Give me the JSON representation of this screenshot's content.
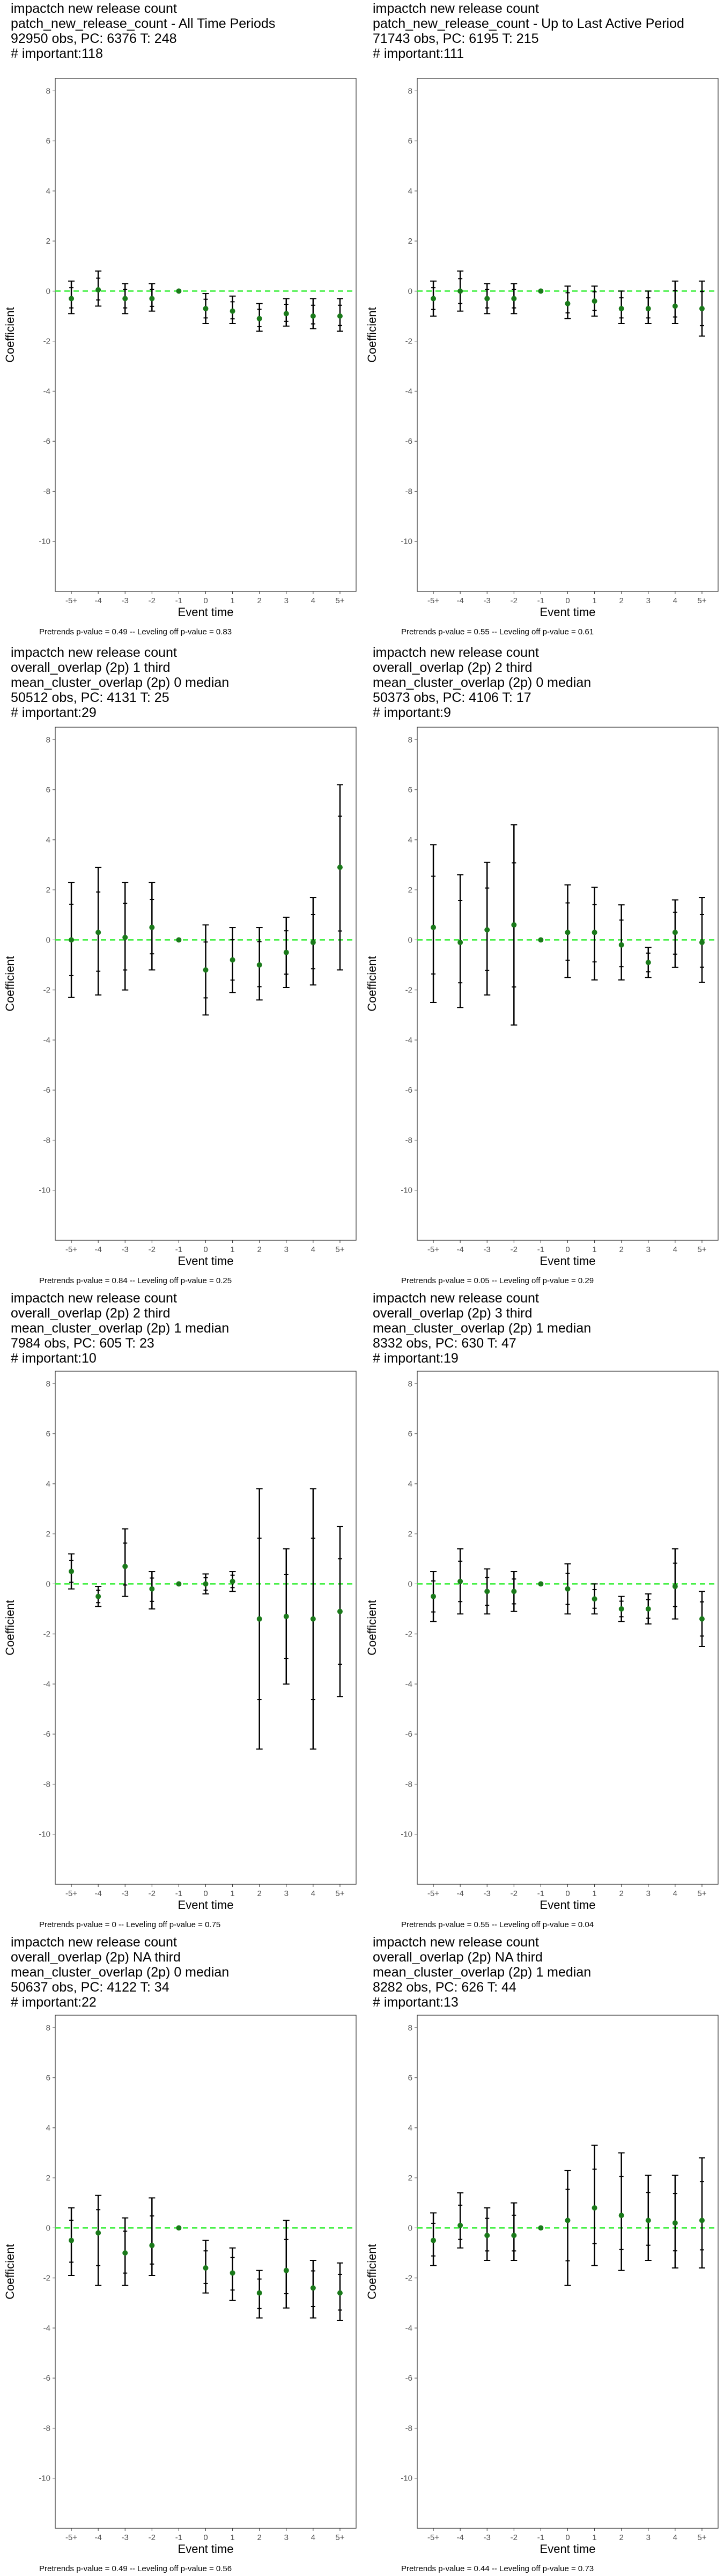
{
  "chart_data": [
    {
      "type": "scatter",
      "title_lines": [
        "impactch new release count",
        "patch_new_release_count - All Time Periods",
        "92950 obs, PC: 6376 T: 248",
        "# important:118"
      ],
      "xlabel": "Event time",
      "ylabel": "Coefficient",
      "categories": [
        "-5+",
        "-4",
        "-3",
        "-2",
        "-1",
        "0",
        "1",
        "2",
        "3",
        "4",
        "5+"
      ],
      "ylim": [
        -12,
        8.5
      ],
      "yticks": [
        -10,
        -8,
        -6,
        -4,
        -2,
        0,
        2,
        4,
        6,
        8
      ],
      "grid": false,
      "reference_line": 0,
      "coef": [
        -0.3,
        0.05,
        -0.3,
        -0.3,
        0,
        -0.7,
        -0.8,
        -1.1,
        -0.9,
        -1.0,
        -1.0
      ],
      "ci_low": [
        -0.9,
        -0.6,
        -0.9,
        -0.8,
        0,
        -1.3,
        -1.3,
        -1.6,
        -1.4,
        -1.5,
        -1.6
      ],
      "ci_high": [
        0.4,
        0.8,
        0.3,
        0.3,
        0,
        -0.1,
        -0.2,
        -0.5,
        -0.3,
        -0.3,
        -0.3
      ],
      "caption_bold": "Pretrends p-value = 0.49 -- Leveling off p-value = 0.83"
    },
    {
      "type": "scatter",
      "title_lines": [
        "impactch new release count",
        "patch_new_release_count - Up to Last Active Period",
        "71743 obs, PC: 6195 T: 215",
        "# important:111"
      ],
      "xlabel": "Event time",
      "ylabel": "Coefficient",
      "categories": [
        "-5+",
        "-4",
        "-3",
        "-2",
        "-1",
        "0",
        "1",
        "2",
        "3",
        "4",
        "5+"
      ],
      "ylim": [
        -12,
        8.5
      ],
      "yticks": [
        -10,
        -8,
        -6,
        -4,
        -2,
        0,
        2,
        4,
        6,
        8
      ],
      "grid": false,
      "reference_line": 0,
      "coef": [
        -0.3,
        0.0,
        -0.3,
        -0.3,
        0,
        -0.5,
        -0.4,
        -0.7,
        -0.7,
        -0.6,
        -0.7
      ],
      "ci_low": [
        -1.0,
        -0.8,
        -0.9,
        -0.9,
        0,
        -1.1,
        -1.0,
        -1.3,
        -1.3,
        -1.3,
        -1.8
      ],
      "ci_high": [
        0.4,
        0.8,
        0.3,
        0.3,
        0,
        0.2,
        0.2,
        0.0,
        0.0,
        0.4,
        0.4
      ],
      "caption_bold": "Pretrends p-value = 0.55 -- Leveling off p-value = 0.61"
    },
    {
      "type": "scatter",
      "title_lines": [
        "impactch new release count",
        "overall_overlap (2p) 1 third",
        "mean_cluster_overlap (2p) 0 median",
        "50512 obs, PC: 4131 T: 25",
        "# important:29"
      ],
      "xlabel": "Event time",
      "ylabel": "Coefficient",
      "categories": [
        "-5+",
        "-4",
        "-3",
        "-2",
        "-1",
        "0",
        "1",
        "2",
        "3",
        "4",
        "5+"
      ],
      "ylim": [
        -12,
        8.5
      ],
      "yticks": [
        -10,
        -8,
        -6,
        -4,
        -2,
        0,
        2,
        4,
        6,
        8
      ],
      "grid": false,
      "reference_line": 0,
      "coef": [
        0.0,
        0.3,
        0.1,
        0.5,
        0,
        -1.2,
        -0.8,
        -1.0,
        -0.5,
        -0.1,
        2.9
      ],
      "ci_low": [
        -2.3,
        -2.2,
        -2.0,
        -1.2,
        0,
        -3.0,
        -2.1,
        -2.4,
        -1.9,
        -1.8,
        -1.2
      ],
      "ci_high": [
        2.3,
        2.9,
        2.3,
        2.3,
        0,
        0.6,
        0.5,
        0.5,
        0.9,
        1.7,
        6.2
      ],
      "caption_bold": "Pretrends p-value = 0.84 -- Leveling off p-value = 0.25"
    },
    {
      "type": "scatter",
      "title_lines": [
        "impactch new release count",
        "overall_overlap (2p) 2 third",
        "mean_cluster_overlap (2p) 0 median",
        "50373 obs, PC: 4106 T: 17",
        "# important:9"
      ],
      "xlabel": "Event time",
      "ylabel": "Coefficient",
      "categories": [
        "-5+",
        "-4",
        "-3",
        "-2",
        "-1",
        "0",
        "1",
        "2",
        "3",
        "4",
        "5+"
      ],
      "ylim": [
        -12,
        8.5
      ],
      "yticks": [
        -10,
        -8,
        -6,
        -4,
        -2,
        0,
        2,
        4,
        6,
        8
      ],
      "grid": false,
      "reference_line": 0,
      "coef": [
        0.5,
        -0.1,
        0.4,
        0.6,
        0,
        0.3,
        0.3,
        -0.2,
        -0.9,
        0.3,
        -0.1
      ],
      "ci_low": [
        -2.5,
        -2.7,
        -2.2,
        -3.4,
        0,
        -1.5,
        -1.6,
        -1.6,
        -1.5,
        -1.1,
        -1.7
      ],
      "ci_high": [
        3.8,
        2.6,
        3.1,
        4.6,
        0,
        2.2,
        2.1,
        1.4,
        -0.3,
        1.6,
        1.7
      ],
      "caption_bold": "Pretrends p-value = 0.05 -- Leveling off p-value = 0.29"
    },
    {
      "type": "scatter",
      "title_lines": [
        "impactch new release count",
        "overall_overlap (2p) 2 third",
        "mean_cluster_overlap (2p) 1 median",
        "7984 obs, PC: 605 T: 23",
        "# important:10"
      ],
      "xlabel": "Event time",
      "ylabel": "Coefficient",
      "categories": [
        "-5+",
        "-4",
        "-3",
        "-2",
        "-1",
        "0",
        "1",
        "2",
        "3",
        "4",
        "5+"
      ],
      "ylim": [
        -12,
        8.5
      ],
      "yticks": [
        -10,
        -8,
        -6,
        -4,
        -2,
        0,
        2,
        4,
        6,
        8
      ],
      "grid": false,
      "reference_line": 0,
      "coef": [
        0.5,
        -0.5,
        0.7,
        -0.2,
        0,
        0.0,
        0.1,
        -1.4,
        -1.3,
        -1.4,
        -1.1
      ],
      "ci_low": [
        -0.2,
        -0.9,
        -0.5,
        -1.0,
        0,
        -0.4,
        -0.3,
        -6.6,
        -4.0,
        -6.6,
        -4.5
      ],
      "ci_high": [
        1.2,
        -0.1,
        2.2,
        0.5,
        0,
        0.4,
        0.5,
        3.8,
        1.4,
        3.8,
        2.3
      ],
      "caption_bold": "Pretrends p-value = 0 -- Leveling off p-value = 0.75"
    },
    {
      "type": "scatter",
      "title_lines": [
        "impactch new release count",
        "overall_overlap (2p) 3 third",
        "mean_cluster_overlap (2p) 1 median",
        "8332 obs, PC: 630 T: 47",
        "# important:19"
      ],
      "xlabel": "Event time",
      "ylabel": "Coefficient",
      "categories": [
        "-5+",
        "-4",
        "-3",
        "-2",
        "-1",
        "0",
        "1",
        "2",
        "3",
        "4",
        "5+"
      ],
      "ylim": [
        -12,
        8.5
      ],
      "yticks": [
        -10,
        -8,
        -6,
        -4,
        -2,
        0,
        2,
        4,
        6,
        8
      ],
      "grid": false,
      "reference_line": 0,
      "coef": [
        -0.5,
        0.1,
        -0.3,
        -0.3,
        0,
        -0.2,
        -0.6,
        -1.0,
        -1.0,
        -0.1,
        -1.4
      ],
      "ci_low": [
        -1.5,
        -1.2,
        -1.2,
        -1.1,
        0,
        -1.2,
        -1.2,
        -1.5,
        -1.6,
        -1.4,
        -2.5
      ],
      "ci_high": [
        0.5,
        1.4,
        0.6,
        0.5,
        0,
        0.8,
        -0.0,
        -0.5,
        -0.4,
        1.4,
        -0.3
      ],
      "caption_bold": "Pretrends p-value = 0.55 -- Leveling off p-value = 0.04"
    },
    {
      "type": "scatter",
      "title_lines": [
        "impactch new release count",
        "overall_overlap (2p) NA third",
        "mean_cluster_overlap (2p) 0 median",
        "50637 obs, PC: 4122 T: 34",
        "# important:22"
      ],
      "xlabel": "Event time",
      "ylabel": "Coefficient",
      "categories": [
        "-5+",
        "-4",
        "-3",
        "-2",
        "-1",
        "0",
        "1",
        "2",
        "3",
        "4",
        "5+"
      ],
      "ylim": [
        -12,
        8.5
      ],
      "yticks": [
        -10,
        -8,
        -6,
        -4,
        -2,
        0,
        2,
        4,
        6,
        8
      ],
      "grid": false,
      "reference_line": 0,
      "coef": [
        -0.5,
        -0.2,
        -1.0,
        -0.7,
        0,
        -1.6,
        -1.8,
        -2.6,
        -1.7,
        -2.4,
        -2.6
      ],
      "ci_low": [
        -1.9,
        -2.3,
        -2.3,
        -1.9,
        0,
        -2.6,
        -2.9,
        -3.6,
        -3.2,
        -3.6,
        -3.7
      ],
      "ci_high": [
        0.8,
        1.3,
        0.4,
        1.2,
        0,
        -0.5,
        -0.8,
        -1.7,
        0.3,
        -1.3,
        -1.4
      ],
      "caption_bold": "Pretrends p-value = 0.49 -- Leveling off p-value = 0.56"
    },
    {
      "type": "scatter",
      "title_lines": [
        "impactch new release count",
        "overall_overlap (2p) NA third",
        "mean_cluster_overlap (2p) 1 median",
        "8282 obs, PC: 626 T: 44",
        "# important:13"
      ],
      "xlabel": "Event time",
      "ylabel": "Coefficient",
      "categories": [
        "-5+",
        "-4",
        "-3",
        "-2",
        "-1",
        "0",
        "1",
        "2",
        "3",
        "4",
        "5+"
      ],
      "ylim": [
        -12,
        8.5
      ],
      "yticks": [
        -10,
        -8,
        -6,
        -4,
        -2,
        0,
        2,
        4,
        6,
        8
      ],
      "grid": false,
      "reference_line": 0,
      "coef": [
        -0.5,
        0.1,
        -0.3,
        -0.3,
        0,
        0.3,
        0.8,
        0.5,
        0.3,
        0.2,
        0.3
      ],
      "ci_low": [
        -1.5,
        -0.8,
        -1.3,
        -1.3,
        0,
        -2.3,
        -1.5,
        -1.7,
        -1.3,
        -1.6,
        -1.6
      ],
      "ci_high": [
        0.6,
        1.4,
        0.8,
        1.0,
        0,
        2.3,
        3.3,
        3.0,
        2.1,
        2.1,
        2.8
      ],
      "caption_bold": "Pretrends p-value = 0.44 -- Leveling off p-value = 0.73"
    }
  ],
  "colors": {
    "point": "#1a7a1a",
    "errorbar": "#000000",
    "reference_line": "#33ee33",
    "panel_border": "#333333",
    "tick_text": "#4d4d4d"
  }
}
